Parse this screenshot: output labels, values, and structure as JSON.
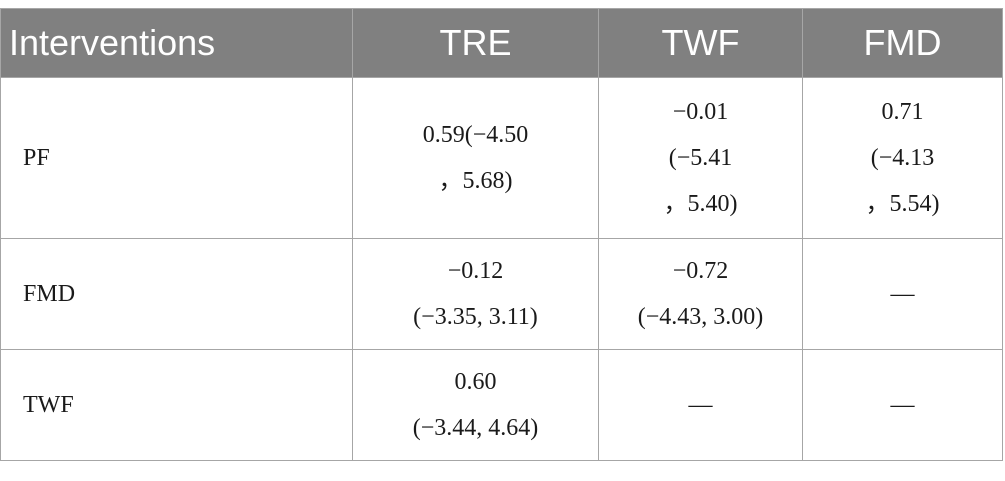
{
  "table": {
    "columns": [
      "Interventions",
      "TRE",
      "TWF",
      "FMD"
    ],
    "rows": [
      {
        "label": "PF",
        "cells": [
          [
            "0.59(−4.50",
            "，5.68)"
          ],
          [
            "−0.01",
            "(−5.41",
            "，5.40)"
          ],
          [
            "0.71",
            "(−4.13",
            "，5.54)"
          ]
        ]
      },
      {
        "label": "FMD",
        "cells": [
          [
            "−0.12",
            "(−3.35, 3.11)"
          ],
          [
            "−0.72",
            "(−4.43, 3.00)"
          ],
          [
            "—"
          ]
        ]
      },
      {
        "label": "TWF",
        "cells": [
          [
            "0.60",
            "(−3.44, 4.64)"
          ],
          [
            "—"
          ],
          [
            "—"
          ]
        ]
      }
    ]
  }
}
